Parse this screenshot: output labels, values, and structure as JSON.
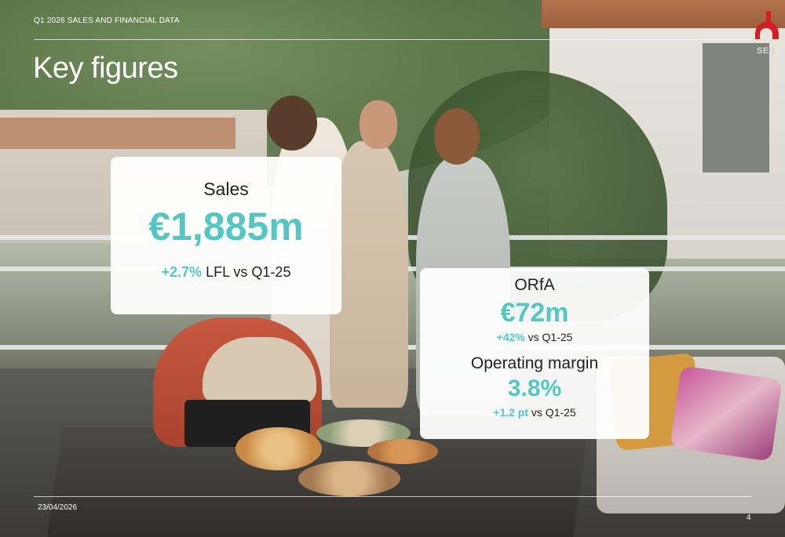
{
  "header": {
    "label": "Q1 2026 SALES AND FINANCIAL DATA",
    "title": "Key figures"
  },
  "logo": {
    "text": "SEB",
    "color": "#d41e23"
  },
  "accent_color": "#55c7c3",
  "sales": {
    "label": "Sales",
    "value": "€1,885m",
    "growth": "+2.7%",
    "growth_suffix": "LFL vs Q1-25"
  },
  "orfa": {
    "label": "ORfA",
    "value": "€72m",
    "growth": "+42%",
    "growth_suffix": "vs Q1-25"
  },
  "operating_margin": {
    "label": "Operating margin",
    "value": "3.8%",
    "growth": "+1.2 pt",
    "growth_suffix": "vs Q1-25"
  },
  "footer": {
    "date": "23/04/2026",
    "page": "4"
  }
}
